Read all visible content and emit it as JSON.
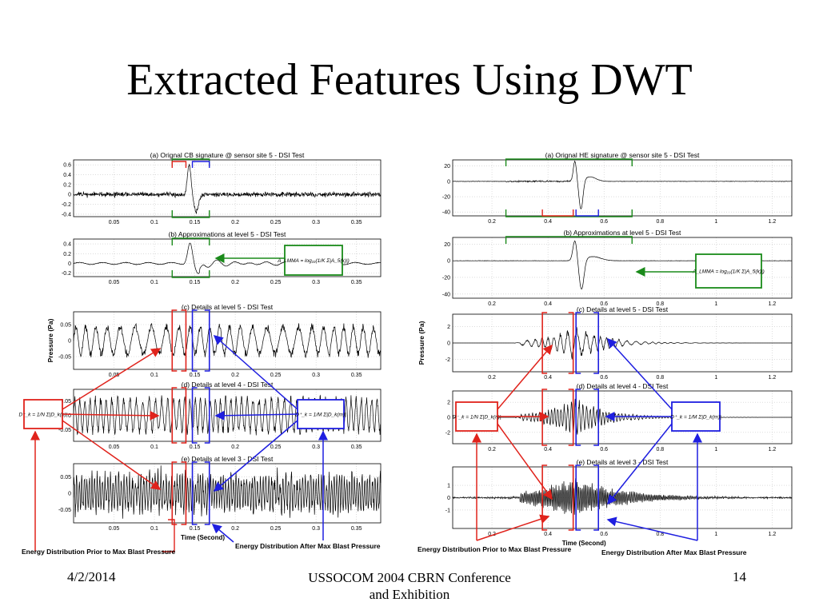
{
  "slide": {
    "title": "Extracted Features Using DWT",
    "footer_date": "4/2/2014",
    "footer_center_line1": "USSOCOM 2004 CBRN Conference",
    "footer_center_line2": "and Exhibition",
    "footer_page": "14"
  },
  "colors": {
    "prior": "#e0231c",
    "after": "#1f1fe0",
    "feature": "#1a8a1a",
    "signal": "#000000"
  },
  "chart_data": [
    {
      "id": "cb",
      "type": "line",
      "ylabel": "Pressure (Pa)",
      "xlabel": "Time (Second)",
      "xlim": [
        0,
        0.38
      ],
      "xticks": [
        "0.05",
        "0.1",
        "0.15",
        "0.2",
        "0.25",
        "0.3",
        "0.35"
      ],
      "blast_peak_x": 0.146,
      "prior_window": [
        0.122,
        0.139
      ],
      "after_window": [
        0.147,
        0.168
      ],
      "panels": [
        {
          "title": "(a)  Orignal CB signature @ sensor site 5 - DSI Test",
          "ylim": [
            -0.45,
            0.7
          ],
          "yticks": [
            "0.6",
            "0.4",
            "0.2",
            "0",
            "-0.2",
            "-0.4"
          ]
        },
        {
          "title": "(b)  Approximations at level 5 - DSI Test",
          "ylim": [
            -0.27,
            0.5
          ],
          "yticks": [
            "0.4",
            "0.2",
            "0",
            "-0.2"
          ]
        },
        {
          "title": "(c)  Details at level 5 - DSI Test",
          "ylim": [
            -0.09,
            0.09
          ],
          "yticks": [
            "0.05",
            "0",
            "-0.05"
          ]
        },
        {
          "title": "(d)  Details at level 4 - DSI Test",
          "ylim": [
            -0.09,
            0.09
          ],
          "yticks": [
            "0.05",
            "0",
            "-0.05"
          ]
        },
        {
          "title": "(e)  Details at level 3 - DSI Test",
          "ylim": [
            -0.09,
            0.09
          ],
          "yticks": [
            "0.05",
            "0",
            "-0.05"
          ]
        }
      ]
    },
    {
      "id": "he",
      "type": "line",
      "ylabel": "Pressure (Pa)",
      "xlabel": "Time (Second)",
      "xlim": [
        0.06,
        1.27
      ],
      "xticks": [
        "0.2",
        "0.4",
        "0.6",
        "0.8",
        "1",
        "1.2"
      ],
      "blast_peak_x": 0.5,
      "prior_window": [
        0.38,
        0.49
      ],
      "after_window": [
        0.5,
        0.58
      ],
      "panels": [
        {
          "title": "(a)  Orignal HE signature @ sensor site 5 - DSI Test",
          "ylim": [
            -45,
            28
          ],
          "yticks": [
            "20",
            "0",
            "-20",
            "-40"
          ]
        },
        {
          "title": "(b)  Approximations at level 5 - DSI Test",
          "ylim": [
            -45,
            28
          ],
          "yticks": [
            "20",
            "0",
            "-20",
            "-40"
          ]
        },
        {
          "title": "(c)  Details at level 5 - DSI Test",
          "ylim": [
            -3.5,
            3.5
          ],
          "yticks": [
            "2",
            "0",
            "-2"
          ]
        },
        {
          "title": "(d)  Details at level 4 - DSI Test",
          "ylim": [
            -3.5,
            3.5
          ],
          "yticks": [
            "2",
            "0",
            "-2"
          ]
        },
        {
          "title": "(e)  Details at level 3 - DSI Test",
          "ylim": [
            -2.5,
            2.5
          ],
          "yticks": [
            "1",
            "0",
            "-1"
          ]
        }
      ]
    }
  ],
  "annotations": {
    "prior_label": "Energy Distribution Prior to Max Blast Pressure",
    "after_label": "Energy Distribution After Max Blast Pressure",
    "formula_approx": "A_LMMA = log₁₀(1/K Σ|A_5(k)|)",
    "formula_prior": "D⁻_k = 1/N Σ|D_k(n)|",
    "formula_after": "D⁺_k = 1/M Σ|D_k(m)|"
  }
}
